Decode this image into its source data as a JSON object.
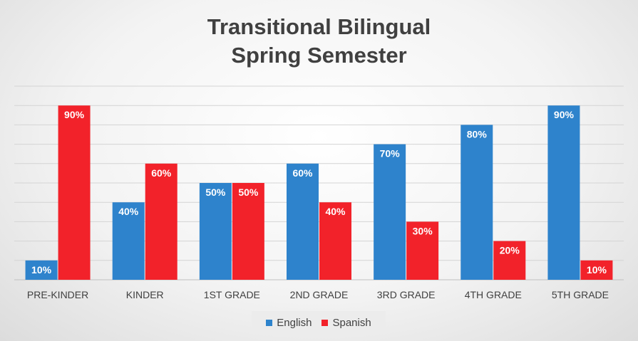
{
  "colors": {
    "english": "#2E83CC",
    "spanish": "#F2222A"
  },
  "chart_data": {
    "type": "bar",
    "title": "Transitional Bilingual Spring Semester",
    "title_lines": [
      "Transitional Bilingual",
      "Spring Semester"
    ],
    "categories": [
      "PRE-KINDER",
      "KINDER",
      "1ST GRADE",
      "2ND GRADE",
      "3RD GRADE",
      "4TH GRADE",
      "5TH GRADE"
    ],
    "series": [
      {
        "name": "English",
        "values": [
          10,
          40,
          50,
          60,
          70,
          80,
          90
        ],
        "labels": [
          "10%",
          "40%",
          "50%",
          "60%",
          "70%",
          "80%",
          "90%"
        ]
      },
      {
        "name": "Spanish",
        "values": [
          90,
          60,
          50,
          40,
          30,
          20,
          10
        ],
        "labels": [
          "90%",
          "60%",
          "50%",
          "40%",
          "30%",
          "20%",
          "10%"
        ]
      }
    ],
    "ylim": [
      0,
      100
    ],
    "y_axis_visible": false,
    "grid": true,
    "legend_position": "bottom",
    "xlabel": "",
    "ylabel": ""
  }
}
